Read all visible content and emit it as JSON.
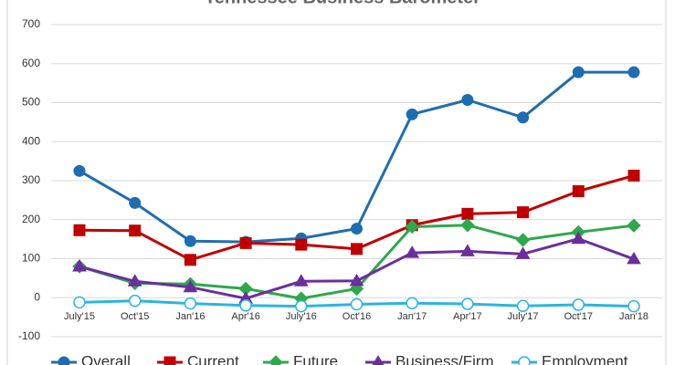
{
  "chart_data": {
    "type": "line",
    "title": "Tennessee Business Barometer",
    "categories": [
      "July'15",
      "Oct'15",
      "Jan'16",
      "Apr'16",
      "July'16",
      "Oct'16",
      "Jan'17",
      "Apr'17",
      "July'17",
      "Oct'17",
      "Jan'18"
    ],
    "series": [
      {
        "name": "Overall",
        "color": "#1f6db1",
        "marker": "circle",
        "values": [
          325,
          243,
          145,
          143,
          152,
          177,
          470,
          507,
          462,
          578,
          578
        ]
      },
      {
        "name": "Current",
        "color": "#c00000",
        "marker": "square",
        "values": [
          173,
          172,
          97,
          140,
          136,
          125,
          186,
          215,
          219,
          273,
          313
        ]
      },
      {
        "name": "Future",
        "color": "#2ea84c",
        "marker": "diamond",
        "values": [
          80,
          37,
          35,
          23,
          -2,
          23,
          182,
          186,
          148,
          168,
          185
        ]
      },
      {
        "name": "Business/Firm",
        "color": "#6b2f9c",
        "marker": "triangle",
        "values": [
          80,
          42,
          27,
          -2,
          42,
          43,
          115,
          119,
          112,
          151,
          99
        ]
      },
      {
        "name": "Employment",
        "color": "#2cb4e0",
        "marker": "hollow-circle",
        "values": [
          -12,
          -8,
          -15,
          -20,
          -22,
          -17,
          -14,
          -16,
          -21,
          -18,
          -22
        ]
      }
    ],
    "ylim": [
      -100,
      700
    ],
    "yticks": [
      -100,
      0,
      100,
      200,
      300,
      400,
      500,
      600,
      700
    ],
    "grid": true,
    "legend": "bottom"
  }
}
